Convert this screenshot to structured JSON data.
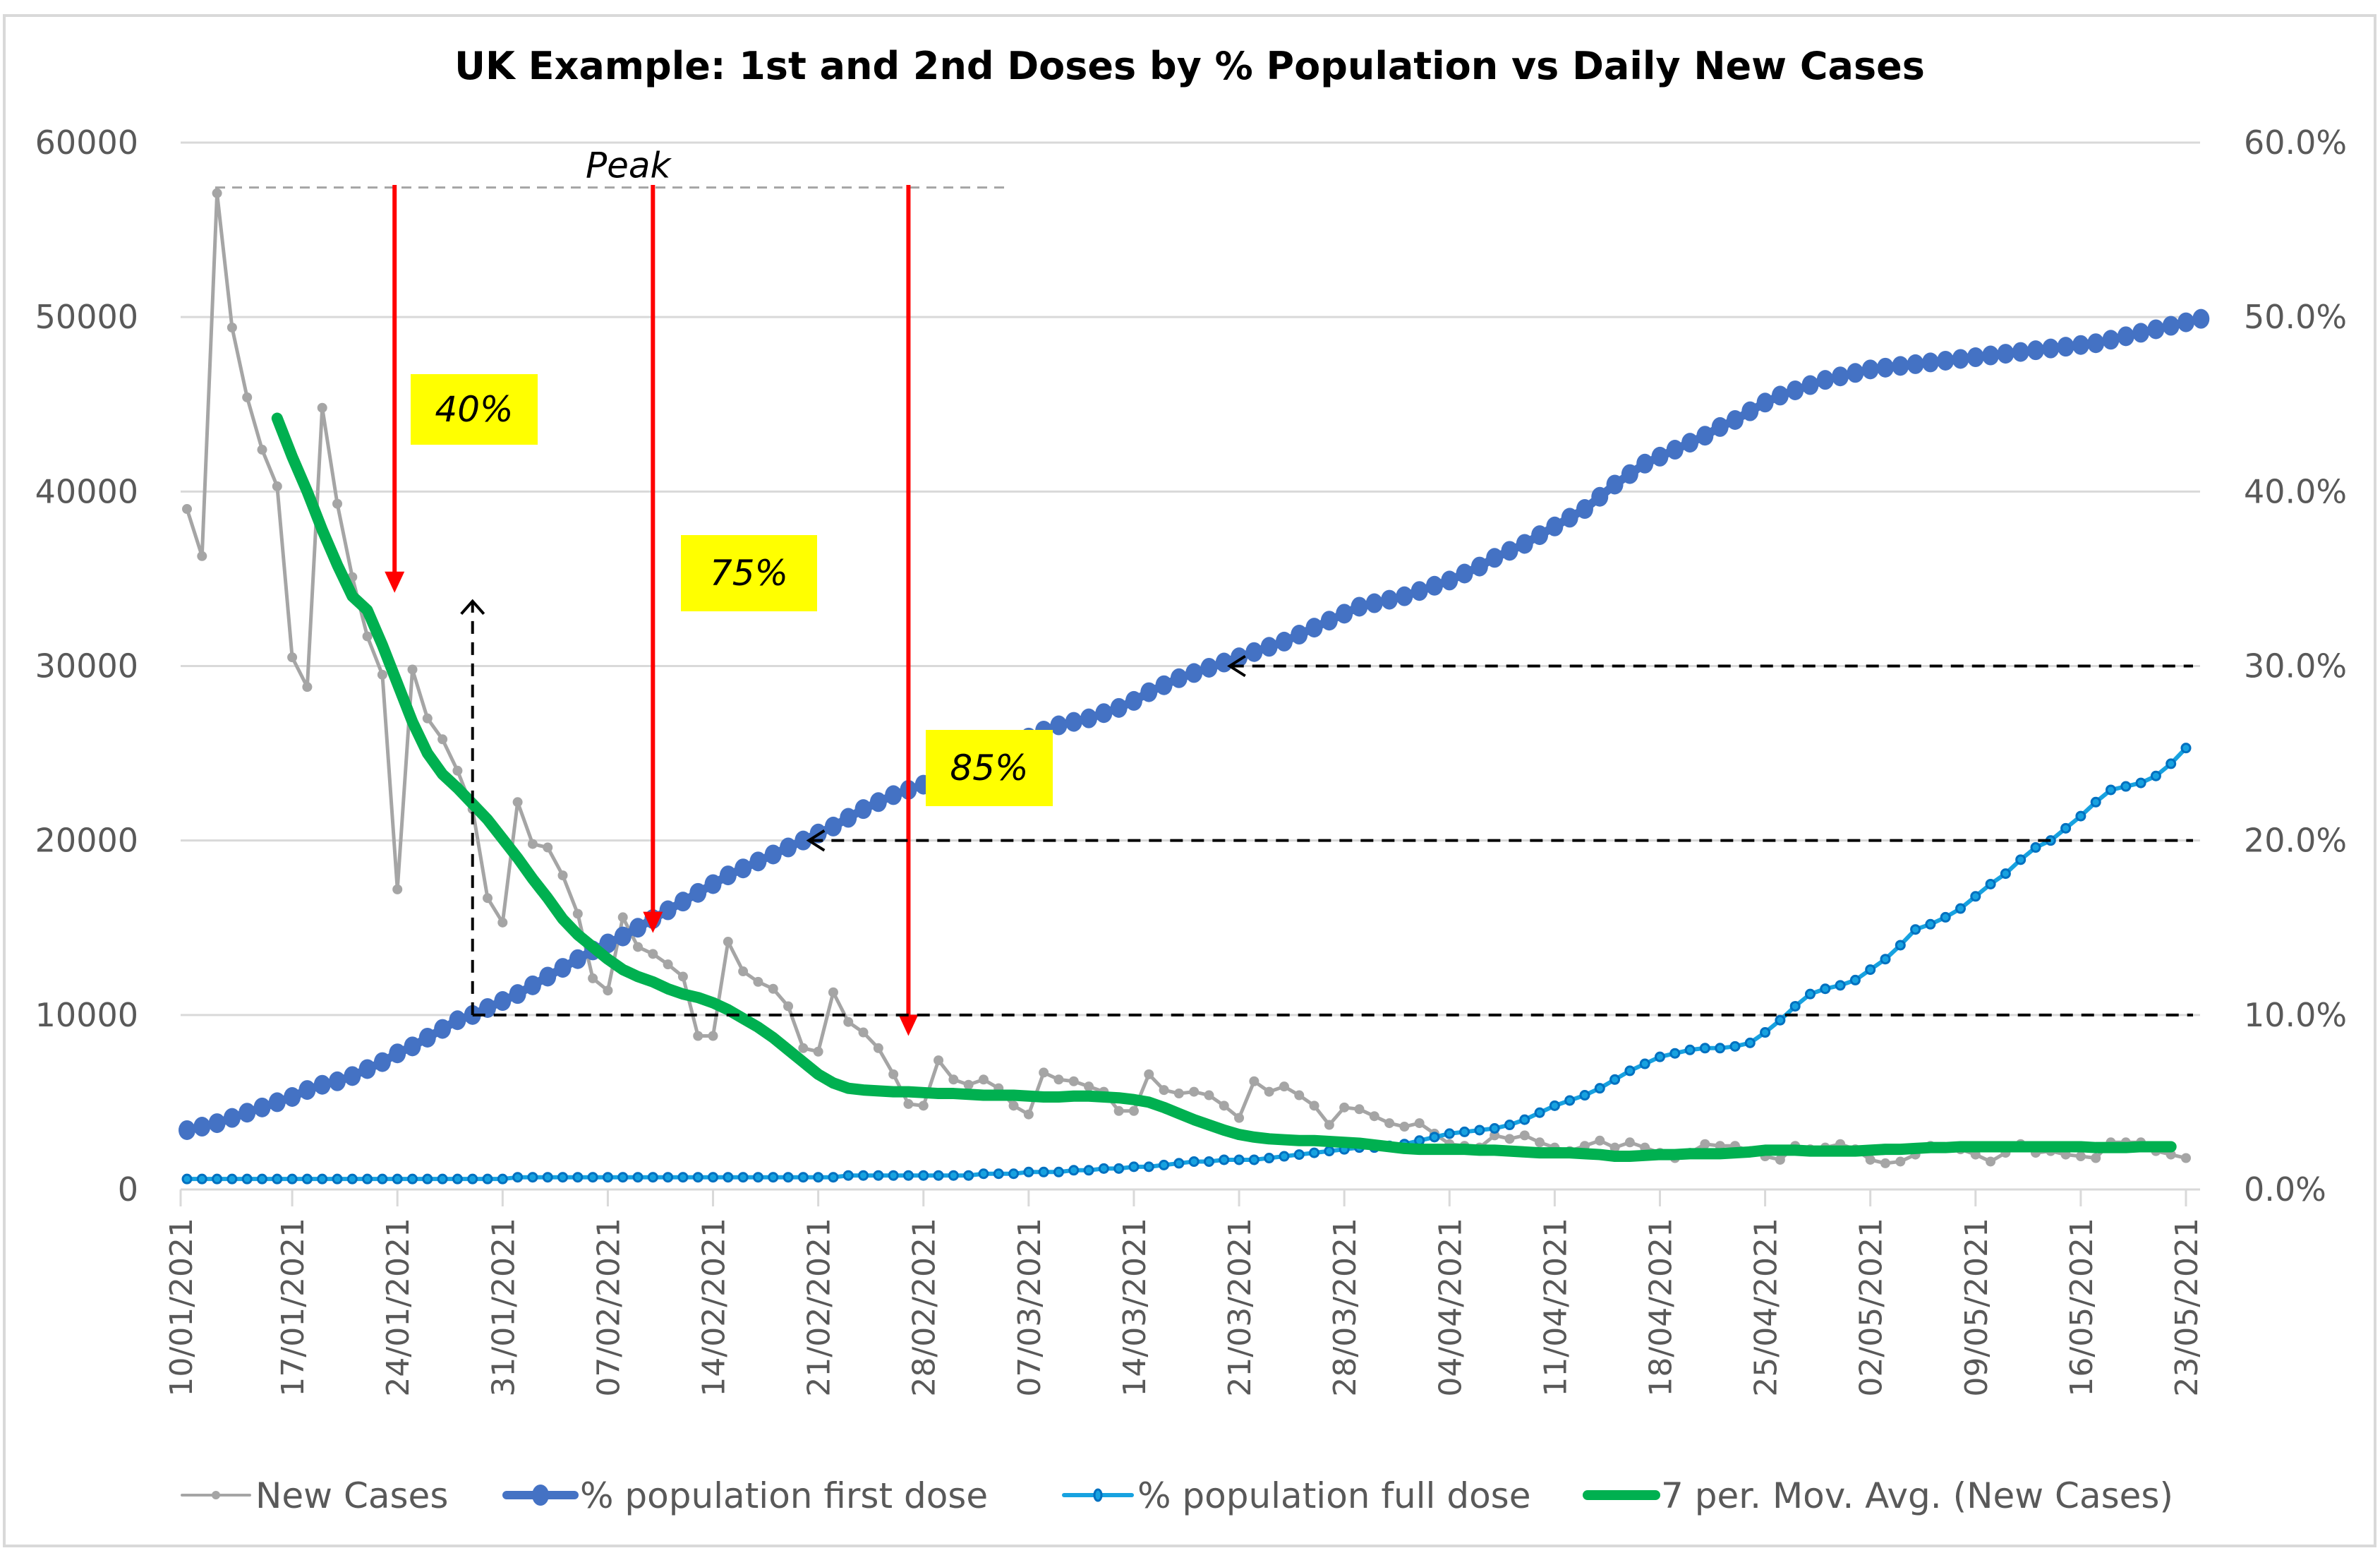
{
  "chart_data": {
    "type": "line",
    "title": "UK Example: 1st and 2nd Doses by % Population vs Daily New Cases",
    "xlabel": "",
    "ylabel_left": "",
    "ylabel_right": "",
    "x_start_date": "10/01/2021",
    "x_end_date": "23/05/2021",
    "x_tick_labels": [
      "10/01/2021",
      "17/01/2021",
      "24/01/2021",
      "31/01/2021",
      "07/02/2021",
      "14/02/2021",
      "21/02/2021",
      "28/02/2021",
      "07/03/2021",
      "14/03/2021",
      "21/03/2021",
      "28/03/2021",
      "04/04/2021",
      "11/04/2021",
      "18/04/2021",
      "25/04/2021",
      "02/05/2021",
      "09/05/2021",
      "16/05/2021",
      "23/05/2021"
    ],
    "y_left": {
      "min": 0,
      "max": 60000,
      "step": 10000,
      "tick_labels": [
        "0",
        "10000",
        "20000",
        "30000",
        "40000",
        "50000",
        "60000"
      ]
    },
    "y_right": {
      "min": 0,
      "max": 0.6,
      "step": 0.1,
      "tick_labels": [
        "0.0%",
        "10.0%",
        "20.0%",
        "30.0%",
        "40.0%",
        "50.0%",
        "60.0%"
      ]
    },
    "grid": "horizontal",
    "legend_position": "bottom",
    "series": [
      {
        "name": "New Cases",
        "axis": "left",
        "color": "#a5a5a5",
        "values": [
          39000,
          36300,
          57100,
          49400,
          45400,
          42400,
          40300,
          30500,
          28800,
          44800,
          39300,
          35100,
          31700,
          29500,
          17200,
          29800,
          27000,
          25800,
          24000,
          21800,
          16700,
          15300,
          22200,
          19800,
          19600,
          18000,
          15800,
          12100,
          11400,
          15600,
          13900,
          13500,
          12900,
          12200,
          8800,
          8800,
          14200,
          12500,
          11900,
          11500,
          10500,
          8100,
          7900,
          11300,
          9600,
          9000,
          8100,
          6600,
          4900,
          4800,
          7400,
          6300,
          6000,
          6300,
          5800,
          4800,
          4300,
          6700,
          6300,
          6200,
          5900,
          5600,
          4500,
          4500,
          6600,
          5700,
          5500,
          5600,
          5400,
          4800,
          4100,
          6200,
          5600,
          5900,
          5400,
          4800,
          3700,
          4700,
          4600,
          4200,
          3800,
          3600,
          3800,
          3200,
          2600,
          2500,
          2400,
          3100,
          2900,
          3100,
          2700,
          2400,
          2200,
          2500,
          2800,
          2400,
          2700,
          2400,
          2100,
          1800,
          2100,
          2600,
          2500,
          2500,
          2200,
          1900,
          1700,
          2500,
          2300,
          2400,
          2600,
          2300,
          1700,
          1500,
          1600,
          2000,
          2500,
          2400,
          2300,
          2000,
          1600,
          2100,
          2600,
          2100,
          2200,
          2000,
          1900,
          1800,
          2700,
          2700,
          2700,
          2200,
          2000,
          1800
        ]
      },
      {
        "name": "% population first dose",
        "axis": "right",
        "color": "#4472c4",
        "values": [
          0.034,
          0.036,
          0.038,
          0.041,
          0.044,
          0.047,
          0.05,
          0.053,
          0.057,
          0.06,
          0.062,
          0.065,
          0.069,
          0.073,
          0.078,
          0.082,
          0.087,
          0.092,
          0.097,
          0.1,
          0.104,
          0.108,
          0.112,
          0.117,
          0.122,
          0.127,
          0.132,
          0.137,
          0.141,
          0.145,
          0.15,
          0.155,
          0.16,
          0.165,
          0.17,
          0.175,
          0.18,
          0.184,
          0.188,
          0.192,
          0.196,
          0.2,
          0.204,
          0.208,
          0.213,
          0.218,
          0.222,
          0.226,
          0.229,
          0.232,
          0.236,
          0.24,
          0.244,
          0.248,
          0.252,
          0.256,
          0.259,
          0.263,
          0.266,
          0.268,
          0.27,
          0.273,
          0.276,
          0.28,
          0.285,
          0.289,
          0.293,
          0.296,
          0.299,
          0.302,
          0.305,
          0.308,
          0.311,
          0.314,
          0.318,
          0.322,
          0.326,
          0.33,
          0.334,
          0.336,
          0.338,
          0.34,
          0.343,
          0.346,
          0.349,
          0.353,
          0.357,
          0.362,
          0.366,
          0.37,
          0.375,
          0.38,
          0.385,
          0.39,
          0.397,
          0.404,
          0.41,
          0.416,
          0.42,
          0.424,
          0.428,
          0.432,
          0.437,
          0.441,
          0.446,
          0.451,
          0.455,
          0.458,
          0.461,
          0.464,
          0.466,
          0.468,
          0.47,
          0.471,
          0.472,
          0.473,
          0.474,
          0.475,
          0.476,
          0.477,
          0.478,
          0.479,
          0.48,
          0.481,
          0.482,
          0.483,
          0.484,
          0.485,
          0.487,
          0.489,
          0.491,
          0.493,
          0.495,
          0.497,
          0.499
        ]
      },
      {
        "name": "% population full dose",
        "axis": "right",
        "color": "#17a2e0",
        "values": [
          0.006,
          0.006,
          0.006,
          0.006,
          0.006,
          0.006,
          0.006,
          0.006,
          0.006,
          0.006,
          0.006,
          0.006,
          0.006,
          0.006,
          0.006,
          0.006,
          0.006,
          0.006,
          0.006,
          0.006,
          0.006,
          0.006,
          0.007,
          0.007,
          0.007,
          0.007,
          0.007,
          0.007,
          0.007,
          0.007,
          0.007,
          0.007,
          0.007,
          0.007,
          0.007,
          0.007,
          0.007,
          0.007,
          0.007,
          0.007,
          0.007,
          0.007,
          0.007,
          0.007,
          0.008,
          0.008,
          0.008,
          0.008,
          0.008,
          0.008,
          0.008,
          0.008,
          0.008,
          0.009,
          0.009,
          0.009,
          0.01,
          0.01,
          0.01,
          0.011,
          0.011,
          0.012,
          0.012,
          0.013,
          0.013,
          0.014,
          0.015,
          0.016,
          0.016,
          0.017,
          0.017,
          0.017,
          0.018,
          0.019,
          0.02,
          0.021,
          0.022,
          0.023,
          0.024,
          0.024,
          0.025,
          0.026,
          0.028,
          0.03,
          0.032,
          0.033,
          0.034,
          0.035,
          0.037,
          0.04,
          0.044,
          0.048,
          0.051,
          0.054,
          0.058,
          0.063,
          0.068,
          0.072,
          0.076,
          0.078,
          0.08,
          0.081,
          0.081,
          0.082,
          0.084,
          0.09,
          0.097,
          0.105,
          0.112,
          0.115,
          0.117,
          0.12,
          0.126,
          0.132,
          0.14,
          0.149,
          0.152,
          0.156,
          0.161,
          0.168,
          0.175,
          0.181,
          0.189,
          0.196,
          0.2,
          0.207,
          0.214,
          0.222,
          0.229,
          0.231,
          0.233,
          0.237,
          0.244,
          0.253
        ]
      },
      {
        "name": "7 per. Mov. Avg. (New Cases)",
        "axis": "left",
        "color": "#00b050",
        "start_index": 6,
        "values": [
          44200,
          42000,
          40000,
          37800,
          35800,
          34000,
          33200,
          31200,
          29000,
          26800,
          25000,
          23800,
          23000,
          22100,
          21200,
          20100,
          19000,
          17800,
          16700,
          15500,
          14600,
          13900,
          13200,
          12600,
          12200,
          11900,
          11500,
          11200,
          11000,
          10700,
          10300,
          9800,
          9300,
          8700,
          8000,
          7300,
          6600,
          6100,
          5800,
          5700,
          5650,
          5600,
          5600,
          5550,
          5500,
          5500,
          5450,
          5400,
          5400,
          5400,
          5350,
          5300,
          5300,
          5350,
          5350,
          5300,
          5250,
          5150,
          5000,
          4700,
          4350,
          4000,
          3700,
          3400,
          3150,
          3000,
          2900,
          2850,
          2800,
          2800,
          2750,
          2700,
          2650,
          2550,
          2450,
          2350,
          2300,
          2300,
          2300,
          2300,
          2250,
          2250,
          2200,
          2150,
          2100,
          2100,
          2100,
          2050,
          2000,
          1900,
          1900,
          1950,
          2000,
          2000,
          2050,
          2050,
          2050,
          2100,
          2150,
          2250,
          2250,
          2250,
          2200,
          2200,
          2200,
          2200,
          2250,
          2300,
          2300,
          2350,
          2400,
          2400,
          2450,
          2450,
          2450,
          2450,
          2450,
          2450,
          2450,
          2450,
          2450,
          2400,
          2400,
          2400,
          2450,
          2450,
          2450
        ]
      }
    ],
    "annotations": {
      "peak_label": "Peak",
      "peak_value": 57100,
      "boxes": [
        {
          "label": "40%",
          "arrow_date": "24/01/2021",
          "arrow_case_value": 34200,
          "first_dose_pct": 0.1
        },
        {
          "label": "75%",
          "arrow_date": "10/02/2021",
          "arrow_case_value": 14700,
          "first_dose_pct": 0.2
        },
        {
          "label": "85%",
          "arrow_date": "27/02/2021",
          "arrow_case_value": 8800,
          "first_dose_pct": 0.3
        }
      ],
      "reference_levels_right_axis": [
        0.1,
        0.2,
        0.3
      ]
    }
  }
}
